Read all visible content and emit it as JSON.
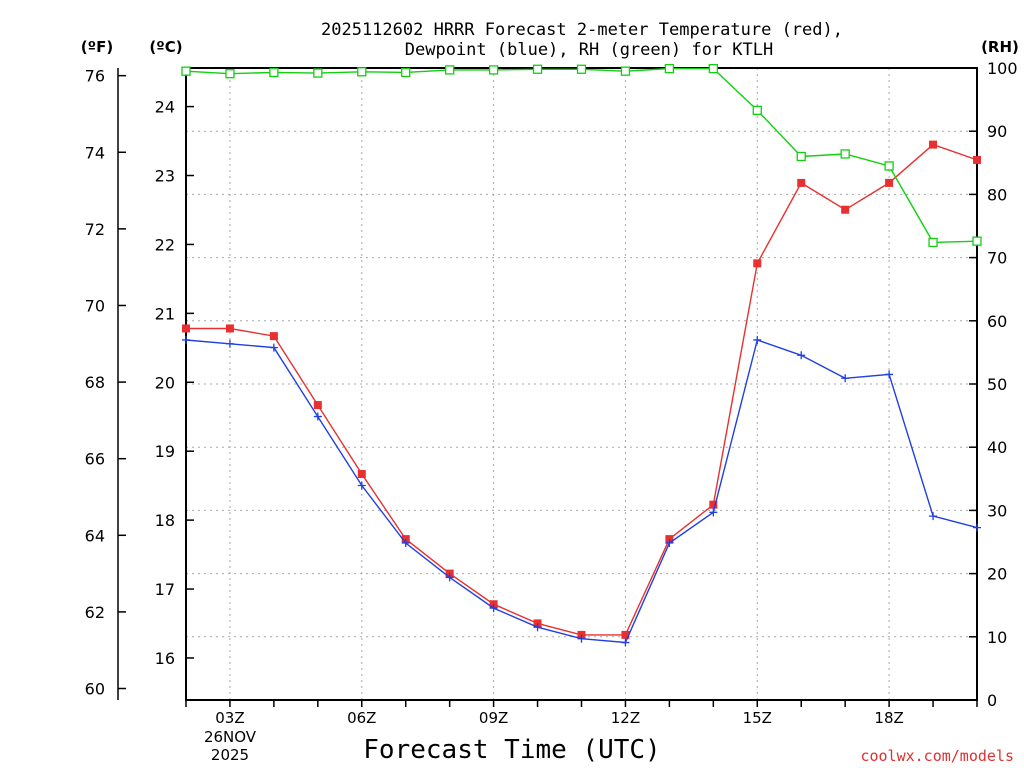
{
  "chart_data": {
    "type": "line",
    "title_line1": "2025112602 HRRR Forecast 2-meter Temperature (red),",
    "title_line2": "Dewpoint (blue), RH (green) for KTLH",
    "unit_left_f": "(ºF)",
    "unit_left_c": "(ºC)",
    "unit_right": "(RH)",
    "xlabel": "Forecast Time (UTC)",
    "date_line1": "26NOV",
    "date_line2": "2025",
    "credit": "coolwx.com/models",
    "x_hours": [
      2,
      3,
      4,
      5,
      6,
      7,
      8,
      9,
      10,
      11,
      12,
      13,
      14,
      15,
      16,
      17,
      18,
      19,
      20
    ],
    "xlim": [
      2,
      20
    ],
    "x_ticks": [
      {
        "hour": 3,
        "label": "03Z"
      },
      {
        "hour": 6,
        "label": "06Z"
      },
      {
        "hour": 9,
        "label": "09Z"
      },
      {
        "hour": 12,
        "label": "12Z"
      },
      {
        "hour": 15,
        "label": "15Z"
      },
      {
        "hour": 18,
        "label": "18Z"
      }
    ],
    "yaxis_f": {
      "range": [
        59.7,
        76.2
      ],
      "ticks": [
        60,
        62,
        64,
        66,
        68,
        70,
        72,
        74,
        76
      ]
    },
    "yaxis_c": {
      "range": [
        15.39,
        24.56
      ],
      "ticks": [
        16,
        17,
        18,
        19,
        20,
        21,
        22,
        23,
        24
      ]
    },
    "yaxis_rh": {
      "range": [
        0,
        100
      ],
      "ticks": [
        0,
        10,
        20,
        30,
        40,
        50,
        60,
        70,
        80,
        90,
        100
      ]
    },
    "grid": true,
    "series": [
      {
        "name": "Temperature",
        "unit": "F",
        "color": "#e83030",
        "marker": "filled-square",
        "values": [
          69.4,
          69.4,
          69.2,
          67.4,
          65.6,
          63.9,
          63.0,
          62.2,
          61.7,
          61.4,
          61.4,
          63.9,
          64.8,
          71.1,
          73.2,
          72.5,
          73.2,
          74.2,
          73.8
        ]
      },
      {
        "name": "Dewpoint",
        "unit": "F",
        "color": "#2040e0",
        "marker": "plus",
        "values": [
          69.1,
          69.0,
          68.9,
          67.1,
          65.3,
          63.8,
          62.9,
          62.1,
          61.6,
          61.3,
          61.2,
          63.8,
          64.6,
          69.1,
          68.7,
          68.1,
          68.2,
          64.5,
          64.2
        ]
      },
      {
        "name": "RH",
        "unit": "%",
        "color": "#10d010",
        "marker": "open-square",
        "values": [
          99.5,
          99.1,
          99.3,
          99.2,
          99.4,
          99.3,
          99.7,
          99.7,
          99.8,
          99.8,
          99.5,
          99.9,
          99.9,
          93.3,
          86.0,
          86.4,
          84.5,
          72.4,
          72.6
        ]
      }
    ]
  }
}
